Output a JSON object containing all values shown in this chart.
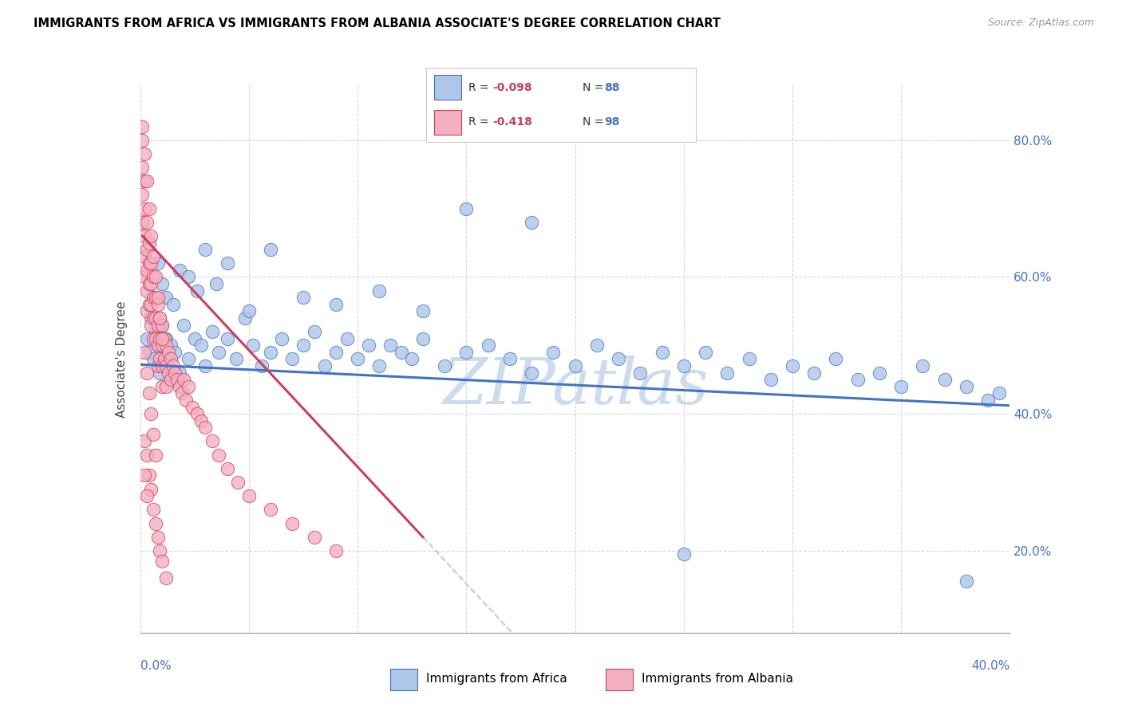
{
  "title": "IMMIGRANTS FROM AFRICA VS IMMIGRANTS FROM ALBANIA ASSOCIATE'S DEGREE CORRELATION CHART",
  "source": "Source: ZipAtlas.com",
  "ylabel": "Associate's Degree",
  "yaxis_values": [
    0.2,
    0.4,
    0.6,
    0.8
  ],
  "xlim": [
    0.0,
    0.4
  ],
  "ylim": [
    0.08,
    0.88
  ],
  "legend_africa_R": "-0.098",
  "legend_africa_N": "88",
  "legend_albania_R": "-0.418",
  "legend_albania_N": "98",
  "scatter_africa_color": "#aec6e8",
  "scatter_africa_edge": "#4472c4",
  "scatter_albania_color": "#f4afc0",
  "scatter_albania_edge": "#c84060",
  "trendline_africa_color": "#4472c4",
  "trendline_albania_color": "#c84060",
  "trendline_dashed_color": "#c8c8c8",
  "watermark_color": "#ccdcee",
  "africa_trendline_y0": 0.472,
  "africa_trendline_y1": 0.412,
  "albania_trendline_x0": 0.001,
  "albania_trendline_x1": 0.13,
  "albania_trendline_y0": 0.66,
  "albania_trendline_y1": 0.22,
  "africa_x": [
    0.003,
    0.004,
    0.005,
    0.006,
    0.007,
    0.008,
    0.009,
    0.01,
    0.011,
    0.012,
    0.013,
    0.014,
    0.016,
    0.018,
    0.02,
    0.022,
    0.025,
    0.028,
    0.03,
    0.033,
    0.036,
    0.04,
    0.044,
    0.048,
    0.052,
    0.056,
    0.06,
    0.065,
    0.07,
    0.075,
    0.08,
    0.085,
    0.09,
    0.095,
    0.1,
    0.105,
    0.11,
    0.115,
    0.12,
    0.125,
    0.13,
    0.14,
    0.15,
    0.16,
    0.17,
    0.18,
    0.19,
    0.2,
    0.21,
    0.22,
    0.23,
    0.24,
    0.25,
    0.26,
    0.27,
    0.28,
    0.29,
    0.3,
    0.31,
    0.32,
    0.33,
    0.34,
    0.35,
    0.36,
    0.37,
    0.38,
    0.39,
    0.395,
    0.008,
    0.01,
    0.012,
    0.015,
    0.018,
    0.022,
    0.026,
    0.03,
    0.035,
    0.04,
    0.05,
    0.06,
    0.075,
    0.09,
    0.11,
    0.13,
    0.15,
    0.18,
    0.25,
    0.38
  ],
  "africa_y": [
    0.51,
    0.49,
    0.54,
    0.48,
    0.52,
    0.5,
    0.46,
    0.53,
    0.49,
    0.51,
    0.47,
    0.5,
    0.49,
    0.46,
    0.53,
    0.48,
    0.51,
    0.5,
    0.47,
    0.52,
    0.49,
    0.51,
    0.48,
    0.54,
    0.5,
    0.47,
    0.49,
    0.51,
    0.48,
    0.5,
    0.52,
    0.47,
    0.49,
    0.51,
    0.48,
    0.5,
    0.47,
    0.5,
    0.49,
    0.48,
    0.51,
    0.47,
    0.49,
    0.5,
    0.48,
    0.46,
    0.49,
    0.47,
    0.5,
    0.48,
    0.46,
    0.49,
    0.47,
    0.49,
    0.46,
    0.48,
    0.45,
    0.47,
    0.46,
    0.48,
    0.45,
    0.46,
    0.44,
    0.47,
    0.45,
    0.44,
    0.42,
    0.43,
    0.62,
    0.59,
    0.57,
    0.56,
    0.61,
    0.6,
    0.58,
    0.64,
    0.59,
    0.62,
    0.55,
    0.64,
    0.57,
    0.56,
    0.58,
    0.55,
    0.7,
    0.68,
    0.195,
    0.155
  ],
  "albania_x": [
    0.001,
    0.001,
    0.001,
    0.001,
    0.002,
    0.002,
    0.002,
    0.002,
    0.002,
    0.003,
    0.003,
    0.003,
    0.003,
    0.003,
    0.004,
    0.004,
    0.004,
    0.004,
    0.005,
    0.005,
    0.005,
    0.005,
    0.006,
    0.006,
    0.006,
    0.006,
    0.007,
    0.007,
    0.007,
    0.008,
    0.008,
    0.008,
    0.008,
    0.009,
    0.009,
    0.009,
    0.01,
    0.01,
    0.01,
    0.01,
    0.011,
    0.011,
    0.012,
    0.012,
    0.012,
    0.013,
    0.013,
    0.014,
    0.014,
    0.015,
    0.016,
    0.017,
    0.018,
    0.019,
    0.02,
    0.021,
    0.022,
    0.024,
    0.026,
    0.028,
    0.03,
    0.033,
    0.036,
    0.04,
    0.045,
    0.05,
    0.06,
    0.07,
    0.08,
    0.09,
    0.001,
    0.002,
    0.003,
    0.004,
    0.005,
    0.006,
    0.007,
    0.008,
    0.009,
    0.01,
    0.002,
    0.003,
    0.004,
    0.005,
    0.006,
    0.007,
    0.008,
    0.009,
    0.01,
    0.012,
    0.002,
    0.003,
    0.004,
    0.005,
    0.006,
    0.007,
    0.002,
    0.003
  ],
  "albania_y": [
    0.8,
    0.76,
    0.72,
    0.68,
    0.74,
    0.7,
    0.66,
    0.63,
    0.6,
    0.68,
    0.64,
    0.61,
    0.58,
    0.55,
    0.65,
    0.62,
    0.59,
    0.56,
    0.62,
    0.59,
    0.56,
    0.53,
    0.6,
    0.57,
    0.54,
    0.51,
    0.57,
    0.54,
    0.51,
    0.56,
    0.53,
    0.5,
    0.47,
    0.54,
    0.51,
    0.48,
    0.53,
    0.5,
    0.47,
    0.44,
    0.51,
    0.48,
    0.5,
    0.47,
    0.44,
    0.49,
    0.46,
    0.48,
    0.45,
    0.47,
    0.46,
    0.45,
    0.44,
    0.43,
    0.45,
    0.42,
    0.44,
    0.41,
    0.4,
    0.39,
    0.38,
    0.36,
    0.34,
    0.32,
    0.3,
    0.28,
    0.26,
    0.24,
    0.22,
    0.2,
    0.82,
    0.78,
    0.74,
    0.7,
    0.66,
    0.63,
    0.6,
    0.57,
    0.54,
    0.51,
    0.36,
    0.34,
    0.31,
    0.29,
    0.26,
    0.24,
    0.22,
    0.2,
    0.185,
    0.16,
    0.49,
    0.46,
    0.43,
    0.4,
    0.37,
    0.34,
    0.31,
    0.28
  ]
}
